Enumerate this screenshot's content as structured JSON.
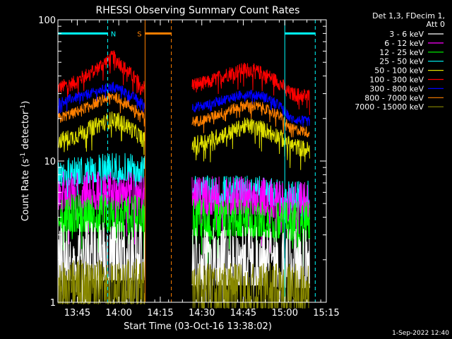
{
  "chart_data": {
    "type": "line",
    "title": "RHESSI Observing Summary Count Rates",
    "xlabel": "Start Time (03-Oct-16 13:38:02)",
    "ylabel_parts": [
      "Count Rate (s",
      "-1",
      " detector",
      "-1",
      ")"
    ],
    "yscale": "log",
    "ylim": [
      1,
      100
    ],
    "xlim_min": [
      38,
      135
    ],
    "x_ticks": [
      {
        "min": 45,
        "label": "13:45"
      },
      {
        "min": 60,
        "label": "14:00"
      },
      {
        "min": 75,
        "label": "14:15"
      },
      {
        "min": 90,
        "label": "14:30"
      },
      {
        "min": 105,
        "label": "14:45"
      },
      {
        "min": 120,
        "label": "15:00"
      },
      {
        "min": 135,
        "label": "15:15"
      }
    ],
    "y_ticks": [
      {
        "v": 1,
        "label": "1"
      },
      {
        "v": 10,
        "label": "10"
      },
      {
        "v": 100,
        "label": "100"
      }
    ],
    "legend": {
      "header": [
        "Det 1,3, FDecim 1,",
        "Att 0"
      ],
      "entries": [
        {
          "label": "3 - 6 keV",
          "color": "#ffffff"
        },
        {
          "label": "6 - 12 keV",
          "color": "#ff00ff"
        },
        {
          "label": "12 - 25 keV",
          "color": "#00ff00"
        },
        {
          "label": "25 - 50 keV",
          "color": "#00ffff"
        },
        {
          "label": "50 - 100 keV",
          "color": "#e0e000"
        },
        {
          "label": "100 - 300 keV",
          "color": "#ff0000"
        },
        {
          "label": "300 - 800 keV",
          "color": "#0000ff"
        },
        {
          "label": "800 - 7000 keV",
          "color": "#ff8000"
        },
        {
          "label": "7000 - 15000 keV",
          "color": "#888800"
        }
      ]
    },
    "segments_min": [
      [
        38,
        69.5
      ],
      [
        86.5,
        129
      ]
    ],
    "series": [
      {
        "name": "100 - 300 keV",
        "color": "#ff0000",
        "x": [
          38,
          44,
          52,
          58,
          61,
          66,
          69.5,
          86.5,
          92,
          100,
          106,
          112,
          118,
          122,
          129
        ],
        "y": [
          33,
          36,
          45,
          55,
          48,
          38,
          33,
          35,
          36,
          42,
          45,
          42,
          36,
          30,
          29
        ]
      },
      {
        "name": "300 - 800 keV",
        "color": "#0000ff",
        "x": [
          38,
          44,
          52,
          58,
          61,
          66,
          69.5,
          86.5,
          92,
          100,
          106,
          112,
          118,
          122,
          129
        ],
        "y": [
          26,
          28,
          31,
          34,
          32,
          28,
          25,
          24,
          25,
          28,
          30,
          29,
          25,
          20,
          19
        ]
      },
      {
        "name": "800 - 7000 keV",
        "color": "#ff8000",
        "x": [
          38,
          44,
          52,
          58,
          61,
          66,
          69.5,
          86.5,
          92,
          100,
          106,
          112,
          118,
          122,
          129
        ],
        "y": [
          20,
          22,
          26,
          29,
          27,
          23,
          20,
          19,
          20,
          23,
          25,
          24,
          21,
          17,
          16
        ]
      },
      {
        "name": "50 - 100 keV",
        "color": "#e0e000",
        "x": [
          38,
          44,
          52,
          58,
          61,
          66,
          69.5,
          86.5,
          92,
          100,
          106,
          112,
          118,
          122,
          129
        ],
        "y": [
          14,
          15,
          18,
          20,
          19,
          16,
          14,
          13,
          14,
          16,
          18,
          17,
          15,
          13,
          12
        ]
      },
      {
        "name": "25 - 50 keV",
        "color": "#00ffff",
        "x": [
          38,
          50,
          60,
          69.5,
          86.5,
          100,
          110,
          120,
          129
        ],
        "y": [
          8.5,
          9,
          9.5,
          9,
          6.5,
          6.5,
          6.5,
          6,
          6
        ]
      },
      {
        "name": "6 - 12 keV",
        "color": "#ff00ff",
        "x": [
          38,
          50,
          60,
          69.5,
          86.5,
          100,
          110,
          120,
          129
        ],
        "y": [
          6.5,
          6.5,
          6.5,
          6.5,
          6,
          6,
          6,
          5.5,
          5.5
        ]
      },
      {
        "name": "12 - 25 keV",
        "color": "#00ff00",
        "x": [
          38,
          50,
          60,
          69.5,
          86.5,
          100,
          110,
          120,
          129
        ],
        "y": [
          4.5,
          4.5,
          4.5,
          4.5,
          4.2,
          4.2,
          4.2,
          4,
          4
        ]
      },
      {
        "name": "3 - 6 keV",
        "color": "#ffffff",
        "x": [
          38,
          50,
          60,
          69.5,
          86.5,
          100,
          110,
          120,
          129
        ],
        "y": [
          2.6,
          2.6,
          2.6,
          2.6,
          2.4,
          2.4,
          2.4,
          2.3,
          2.3
        ]
      },
      {
        "name": "7000 - 15000 keV",
        "color": "#888800",
        "x": [
          38,
          50,
          60,
          69.5,
          86.5,
          100,
          110,
          120,
          129
        ],
        "y": [
          1.5,
          1.5,
          1.5,
          1.5,
          1.4,
          1.4,
          1.4,
          1.4,
          1.4
        ]
      }
    ],
    "annotations": [
      {
        "kind": "night",
        "label": "N",
        "color": "#00ffff",
        "start_min": 38,
        "end_min": 56,
        "level": 80,
        "dashed_at": 56
      },
      {
        "kind": "saa",
        "label": "S",
        "color": "#ff8000",
        "start_min": 69.5,
        "end_min": 79,
        "level": 80,
        "dashed_at": 79
      },
      {
        "kind": "night",
        "label": "",
        "color": "#00ffff",
        "start_min": 120,
        "end_min": 131,
        "level": 80,
        "dashed_at": 131
      }
    ],
    "timestamp": "1-Sep-2022 12:40"
  }
}
